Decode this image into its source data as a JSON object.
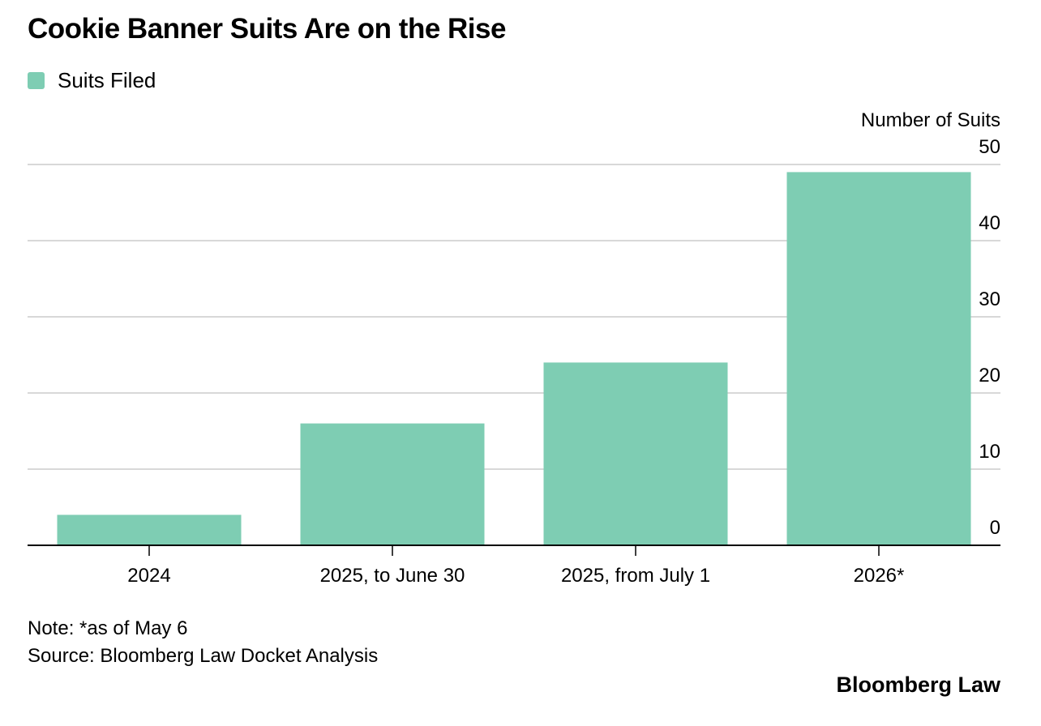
{
  "title": "Cookie Banner Suits Are on the Rise",
  "note": "Note: *as of May 6",
  "source": "Source: Bloomberg Law Docket Analysis",
  "brand": "Bloomberg Law",
  "colors": {
    "bar": "#7ecdb3",
    "grid": "#cccccc",
    "axis": "#000000",
    "text": "#000000"
  },
  "chart_data": {
    "type": "bar",
    "title": "Cookie Banner Suits Are on the Rise",
    "categories": [
      "2024",
      "2025, to June 30",
      "2025, from July 1",
      "2026*"
    ],
    "series": [
      {
        "name": "Suits Filed",
        "values": [
          4,
          16,
          24,
          49
        ]
      }
    ],
    "xlabel": "",
    "ylabel": "Number of Suits",
    "ylim": [
      0,
      50
    ],
    "yticks": [
      0,
      10,
      20,
      30,
      40,
      50
    ],
    "y_axis_side": "right",
    "grid": true,
    "legend": "top-left"
  }
}
